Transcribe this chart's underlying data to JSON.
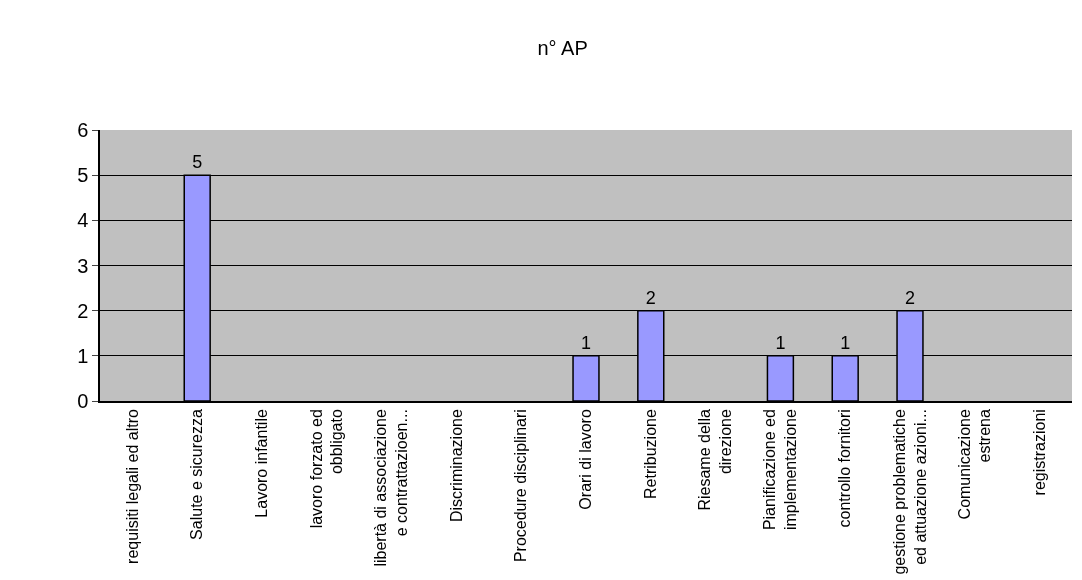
{
  "chart_data": {
    "type": "bar",
    "title": "n° AP",
    "categories": [
      "requisiti legali ed altro",
      "Salute e sicurezza",
      "Lavoro infantile",
      "lavoro forzato ed\nobbligato",
      "libertà di associazione\ne contrattazioen...",
      "Discriminazione",
      "Procedure disciplinari",
      "Orari di lavoro",
      "Retribuzione",
      "Riesame della\ndirezione",
      "Pianificazione ed\nimplementazione",
      "controllo fornitori",
      "gestione problematiche\ned attuazione azioni...",
      "Comunicazione\nestrena",
      "registrazioni"
    ],
    "values": [
      null,
      5,
      null,
      null,
      null,
      null,
      null,
      1,
      2,
      null,
      1,
      1,
      2,
      null,
      null
    ],
    "color": "#9999ff",
    "data_labels": true,
    "ylim": [
      0,
      6
    ],
    "yticks": [
      0,
      1,
      2,
      3,
      4,
      5,
      6
    ],
    "grid": "y"
  }
}
